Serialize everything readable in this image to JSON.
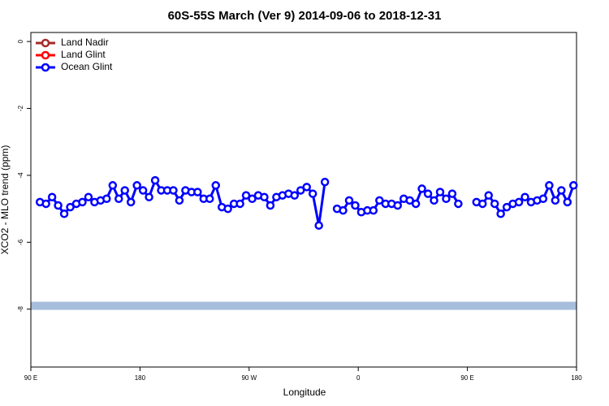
{
  "chart_data": {
    "type": "line",
    "title": "60S-55S March (Ver 9)   2014-09-06 to 2018-12-31",
    "xlabel": "Longitude",
    "ylabel": "XCO2 - MLO trend (ppm)",
    "xlim": [
      90,
      540
    ],
    "ylim": [
      -9.73,
      0.27
    ],
    "xticks": [
      {
        "value": 90,
        "label": "90 E"
      },
      180,
      {
        "value": 270,
        "label": "90 W"
      },
      {
        "value": 360,
        "label": "0"
      },
      {
        "value": 450,
        "label": "90 E"
      },
      {
        "value": 540,
        "label": "180"
      }
    ],
    "yticks": [
      0,
      -2,
      -4,
      -6,
      -8
    ],
    "band": {
      "value": -7.9,
      "color": "#a6bddb"
    },
    "legend": "top-left",
    "x": [
      97.5,
      102.5,
      107.5,
      112.5,
      117.5,
      122.5,
      127.5,
      132.5,
      137.5,
      142.5,
      147.5,
      152.5,
      157.5,
      162.5,
      167.5,
      172.5,
      177.5,
      182.5,
      187.5,
      192.5,
      197.5,
      202.5,
      207.5,
      212.5,
      217.5,
      222.5,
      227.5,
      232.5,
      237.5,
      242.5,
      247.5,
      252.5,
      257.5,
      262.5,
      267.5,
      272.5,
      277.5,
      282.5,
      287.5,
      292.5,
      297.5,
      302.5,
      307.5,
      312.5,
      317.5,
      322.5,
      327.5,
      332.5,
      337.5,
      342.5,
      347.5,
      352.5,
      357.5,
      362.5,
      367.5,
      372.5,
      377.5,
      382.5,
      387.5,
      392.5,
      397.5,
      402.5,
      407.5,
      412.5,
      417.5,
      422.5,
      427.5,
      432.5,
      437.5,
      442.5,
      447.5,
      452.5,
      457.5,
      462.5,
      467.5,
      472.5,
      477.5,
      482.5,
      487.5,
      492.5,
      497.5,
      502.5,
      507.5,
      512.5,
      517.5,
      522.5,
      527.5,
      532.5,
      537.5
    ],
    "series": [
      {
        "name": "Land Nadir",
        "color": "#a52a2a",
        "values": [
          null,
          null,
          null,
          null,
          null,
          null,
          null,
          null,
          null,
          null,
          null,
          null,
          null,
          null,
          null,
          null,
          null,
          null,
          null,
          null,
          null,
          null,
          null,
          null,
          null,
          null,
          null,
          null,
          null,
          null,
          null,
          null,
          null,
          null,
          null,
          null,
          null,
          null,
          null,
          null,
          null,
          null,
          null,
          null,
          null,
          null,
          null,
          null,
          null,
          null,
          null,
          null,
          null,
          null,
          null,
          null,
          null,
          null,
          null,
          null,
          null,
          null,
          null,
          null,
          null,
          null,
          null,
          null,
          null,
          null,
          null,
          null,
          null,
          null,
          null,
          null,
          null,
          null,
          null,
          null,
          null,
          null,
          null,
          null,
          null,
          null,
          null,
          null,
          null
        ]
      },
      {
        "name": "Land Glint",
        "color": "#ff0000",
        "values": [
          null,
          null,
          null,
          null,
          null,
          null,
          null,
          null,
          null,
          null,
          null,
          null,
          null,
          null,
          null,
          null,
          null,
          null,
          null,
          null,
          null,
          null,
          null,
          null,
          null,
          null,
          null,
          null,
          null,
          null,
          null,
          null,
          null,
          null,
          null,
          null,
          null,
          null,
          null,
          null,
          null,
          null,
          null,
          null,
          null,
          null,
          null,
          null,
          null,
          null,
          null,
          null,
          null,
          null,
          null,
          null,
          null,
          null,
          null,
          null,
          null,
          null,
          null,
          null,
          null,
          null,
          null,
          null,
          null,
          null,
          null,
          null,
          null,
          null,
          null,
          null,
          null,
          null,
          null,
          null,
          null,
          null,
          null,
          null,
          null,
          null,
          null,
          null,
          null
        ]
      },
      {
        "name": "Ocean Glint",
        "color": "#0000ff",
        "values": [
          -4.8,
          -4.85,
          -4.65,
          -4.9,
          -5.15,
          -4.95,
          -4.85,
          -4.8,
          -4.65,
          -4.8,
          -4.75,
          -4.7,
          -4.3,
          -4.7,
          -4.45,
          -4.8,
          -4.3,
          -4.45,
          -4.65,
          -4.15,
          -4.45,
          -4.45,
          -4.45,
          -4.75,
          -4.45,
          -4.5,
          -4.5,
          -4.7,
          -4.7,
          -4.3,
          -4.95,
          -5.0,
          -4.85,
          -4.85,
          -4.6,
          -4.7,
          -4.6,
          -4.65,
          -4.9,
          -4.65,
          -4.6,
          -4.55,
          -4.6,
          -4.45,
          -4.35,
          -4.55,
          -5.5,
          -4.2,
          null,
          -5.0,
          -5.05,
          -4.75,
          -4.9,
          -5.1,
          -5.05,
          -5.05,
          -4.75,
          -4.85,
          -4.85,
          -4.9,
          -4.7,
          -4.75,
          -4.85,
          -4.4,
          -4.55,
          -4.75,
          -4.5,
          -4.7,
          -4.55,
          -4.85,
          null,
          null,
          -4.8,
          -4.85,
          -4.6,
          -4.85,
          -5.15,
          -4.95,
          -4.85,
          -4.8,
          -4.65,
          -4.8,
          -4.75,
          -4.7,
          -4.3,
          -4.75,
          -4.45,
          -4.8,
          -4.3
        ]
      }
    ]
  }
}
